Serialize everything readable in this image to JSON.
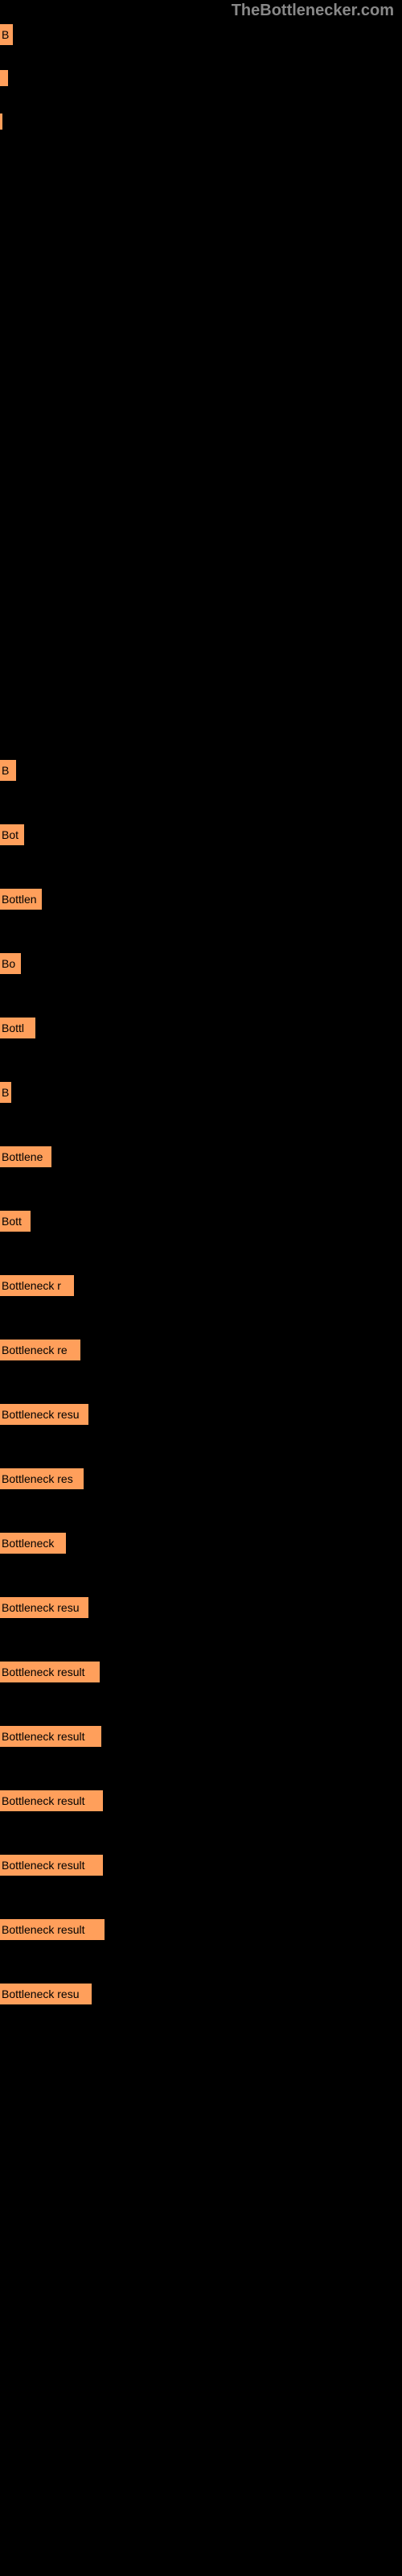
{
  "watermark": "TheBottlenecker.com",
  "bar_color": "#ff9f5b",
  "background_color": "#000000",
  "text_color": "#000000",
  "watermark_color": "#888888",
  "top_items": [
    {
      "label": "B",
      "width": 14
    },
    {
      "label": "",
      "width": 10,
      "thin": true
    },
    {
      "label": "",
      "width": 3,
      "thin": true
    }
  ],
  "bottom_items": [
    {
      "label": "B",
      "width": 18
    },
    {
      "label": "Bot",
      "width": 28
    },
    {
      "label": "Bottlen",
      "width": 50
    },
    {
      "label": "Bo",
      "width": 24
    },
    {
      "label": "Bottl",
      "width": 42
    },
    {
      "label": "B",
      "width": 12
    },
    {
      "label": "Bottlene",
      "width": 62
    },
    {
      "label": "Bott",
      "width": 36
    },
    {
      "label": "Bottleneck r",
      "width": 90
    },
    {
      "label": "Bottleneck re",
      "width": 98
    },
    {
      "label": "Bottleneck resu",
      "width": 108
    },
    {
      "label": "Bottleneck res",
      "width": 102
    },
    {
      "label": "Bottleneck",
      "width": 80
    },
    {
      "label": "Bottleneck resu",
      "width": 108
    },
    {
      "label": "Bottleneck result",
      "width": 122
    },
    {
      "label": "Bottleneck result",
      "width": 124
    },
    {
      "label": "Bottleneck result",
      "width": 126
    },
    {
      "label": "Bottleneck result",
      "width": 126
    },
    {
      "label": "Bottleneck result",
      "width": 128
    },
    {
      "label": "Bottleneck resu",
      "width": 112
    }
  ]
}
